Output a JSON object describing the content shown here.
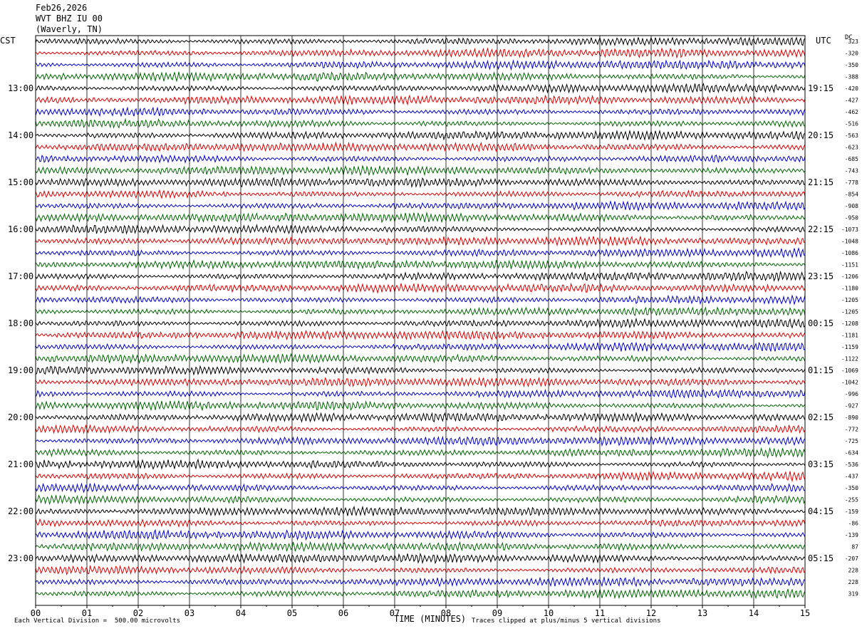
{
  "header": {
    "date": "Feb26,2026",
    "station": "WVT BHZ IU 00",
    "location": "(Waverly, TN)"
  },
  "left_tz": "CST",
  "right_tz": "UTC",
  "dc_label": "DC",
  "footer": {
    "scale_note": "Each Vertical Division =  500.00 microvolts",
    "clip_note": "Traces clipped at plus/minus 5 vertical divisions"
  },
  "colors": {
    "trace_cycle": [
      "#000000",
      "#dd0000",
      "#0000cc",
      "#006600"
    ],
    "grid": "#000000",
    "background": "#ffffff"
  },
  "chart_data": {
    "type": "line",
    "xlabel": "TIME (MINUTES)",
    "xlim": [
      0,
      15
    ],
    "x_ticks": [
      "00",
      "01",
      "02",
      "03",
      "04",
      "05",
      "06",
      "07",
      "08",
      "09",
      "10",
      "11",
      "12",
      "13",
      "14",
      "15"
    ],
    "rows_per_hour": 4,
    "traces_count": 48,
    "left_hour_labels": [
      "13:00",
      "14:00",
      "15:00",
      "16:00",
      "17:00",
      "18:00",
      "19:00",
      "20:00",
      "21:00",
      "22:00",
      "23:00"
    ],
    "right_hour_labels": [
      "19:15",
      "20:15",
      "21:15",
      "22:15",
      "23:15",
      "00:15",
      "01:15",
      "02:15",
      "03:15",
      "04:15",
      "05:15"
    ],
    "dc_offsets": [
      "323",
      "-320",
      "-350",
      "-388",
      "-420",
      "-427",
      "-462",
      "-516",
      "-563",
      "-623",
      "-685",
      "-743",
      "-778",
      "-854",
      "-908",
      "-950",
      "-1073",
      "-1048",
      "-1086",
      "-1151",
      "-1206",
      "-1180",
      "-1205",
      "-1205",
      "-1208",
      "-1181",
      "-1159",
      "-1122",
      "-1069",
      "-1042",
      "-996",
      "-927",
      "-890",
      "-772",
      "-725",
      "-634",
      "-536",
      "-437",
      "-350",
      "-255",
      "-159",
      "-86",
      "-139",
      "87",
      "-207",
      "228",
      "228",
      "319"
    ]
  }
}
